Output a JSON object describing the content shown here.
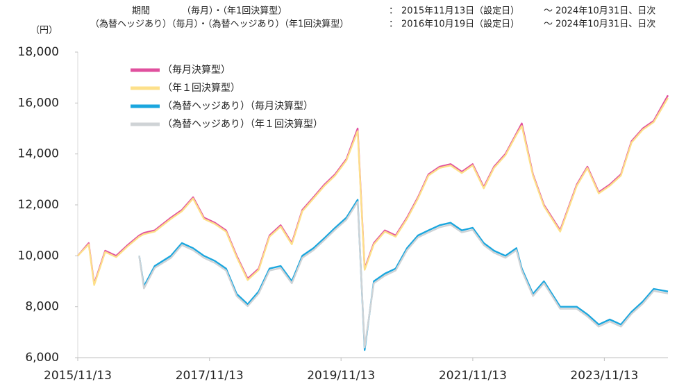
{
  "chart_data": {
    "type": "line",
    "header_rows": [
      [
        "期間",
        "（毎月）・（年1回決算型）",
        "：",
        "2015年11月13日（設定日）",
        "～ 2024年10月31日、日次"
      ],
      [
        "（為替ヘッジあり）（毎月）・（為替ヘッジあり）（年1回決算型）",
        "：",
        "2016年10月19日（設定日）",
        "～ 2024年10月31日、日次"
      ]
    ],
    "y_unit": "（円）",
    "x": [
      "2015/11/13",
      "2016/01/13",
      "2016/02/12",
      "2016/04/13",
      "2016/06/13",
      "2016/08/12",
      "2016/10/19",
      "2016/11/14",
      "2017/01/13",
      "2017/04/13",
      "2017/06/13",
      "2017/08/14",
      "2017/10/13",
      "2017/12/13",
      "2018/02/13",
      "2018/04/13",
      "2018/06/13",
      "2018/08/13",
      "2018/10/12",
      "2018/12/13",
      "2019/02/13",
      "2019/04/12",
      "2019/06/13",
      "2019/08/13",
      "2019/10/11",
      "2019/12/13",
      "2020/02/13",
      "2020/03/23",
      "2020/05/13",
      "2020/07/13",
      "2020/09/11",
      "2020/11/13",
      "2021/01/13",
      "2021/03/12",
      "2021/05/13",
      "2021/07/13",
      "2021/09/13",
      "2021/11/12",
      "2022/01/13",
      "2022/03/11",
      "2022/05/13",
      "2022/07/13",
      "2022/08/12",
      "2022/10/13",
      "2022/12/13",
      "2023/03/13",
      "2023/06/13",
      "2023/08/11",
      "2023/10/13",
      "2023/12/13",
      "2024/02/13",
      "2024/04/12",
      "2024/06/13",
      "2024/08/13",
      "2024/10/31"
    ],
    "series": [
      {
        "name": "（毎月決算型）",
        "color": "#e0509e",
        "values": [
          10000,
          10500,
          8900,
          10200,
          10000,
          10400,
          10800,
          10900,
          11000,
          11500,
          11800,
          12300,
          11500,
          11300,
          11000,
          10000,
          9100,
          9500,
          10800,
          11200,
          10500,
          11800,
          12300,
          12800,
          13200,
          13800,
          15000,
          9500,
          10500,
          11000,
          10800,
          11500,
          12300,
          13200,
          13500,
          13600,
          13300,
          13600,
          12700,
          13500,
          14000,
          14800,
          15200,
          13200,
          12000,
          11000,
          12800,
          13500,
          12500,
          12800,
          13200,
          14500,
          15000,
          15300,
          16300
        ]
      },
      {
        "name": "（年１回決算型）",
        "color": "#fde08a",
        "values": [
          10000,
          10450,
          8850,
          10150,
          9950,
          10350,
          10750,
          10850,
          10950,
          11450,
          11750,
          12250,
          11450,
          11250,
          10950,
          9950,
          9050,
          9450,
          10750,
          11150,
          10450,
          11750,
          12250,
          12750,
          13150,
          13750,
          14900,
          9450,
          10450,
          10950,
          10750,
          11450,
          12250,
          13150,
          13450,
          13550,
          13250,
          13550,
          12650,
          13450,
          13950,
          14750,
          15100,
          13150,
          11950,
          10950,
          12750,
          13450,
          12450,
          12750,
          13150,
          14450,
          14950,
          15250,
          16200
        ]
      },
      {
        "name": "（為替ヘッジあり）（毎月決算型）",
        "color": "#1aa6de",
        "values": [
          null,
          null,
          null,
          null,
          null,
          null,
          10000,
          8800,
          9600,
          10000,
          10500,
          10300,
          10000,
          9800,
          9500,
          8500,
          8100,
          8600,
          9500,
          9600,
          9000,
          10000,
          10300,
          10700,
          11100,
          11500,
          12200,
          6300,
          9000,
          9300,
          9500,
          10300,
          10800,
          11000,
          11200,
          11300,
          11000,
          11100,
          10500,
          10200,
          10000,
          10300,
          9500,
          8500,
          9000,
          8000,
          8000,
          7700,
          7300,
          7500,
          7300,
          7800,
          8200,
          8700,
          8600
        ]
      },
      {
        "name": "（為替ヘッジあり）（年１回決算型）",
        "color": "#cfd3d6",
        "values": [
          null,
          null,
          null,
          null,
          null,
          null,
          10000,
          8720,
          9520,
          9920,
          10420,
          10220,
          9920,
          9720,
          9420,
          8420,
          8020,
          8520,
          9420,
          9520,
          8920,
          9920,
          10220,
          10620,
          11020,
          11420,
          12120,
          6400,
          8920,
          9220,
          9420,
          10220,
          10720,
          10920,
          11120,
          11220,
          10920,
          11020,
          10420,
          10120,
          9920,
          10220,
          9420,
          8420,
          8920,
          7920,
          7920,
          7620,
          7220,
          7420,
          7220,
          7720,
          8120,
          8620,
          8520
        ]
      }
    ],
    "xlim": [
      "2015/11/13",
      "2024/10/31"
    ],
    "xticks": [
      "2015/11/13",
      "2017/11/13",
      "2019/11/13",
      "2021/11/13",
      "2023/11/13"
    ],
    "ylim": [
      6000,
      18000
    ],
    "yticks": [
      {
        "value": 6000,
        "label": "6,000"
      },
      {
        "value": 8000,
        "label": "8,000"
      },
      {
        "value": 10000,
        "label": "10,000"
      },
      {
        "value": 12000,
        "label": "12,000"
      },
      {
        "value": 14000,
        "label": "14,000"
      },
      {
        "value": 16000,
        "label": "16,000"
      },
      {
        "value": 18000,
        "label": "18,000"
      }
    ],
    "legend": "upper-left",
    "grid": false
  }
}
